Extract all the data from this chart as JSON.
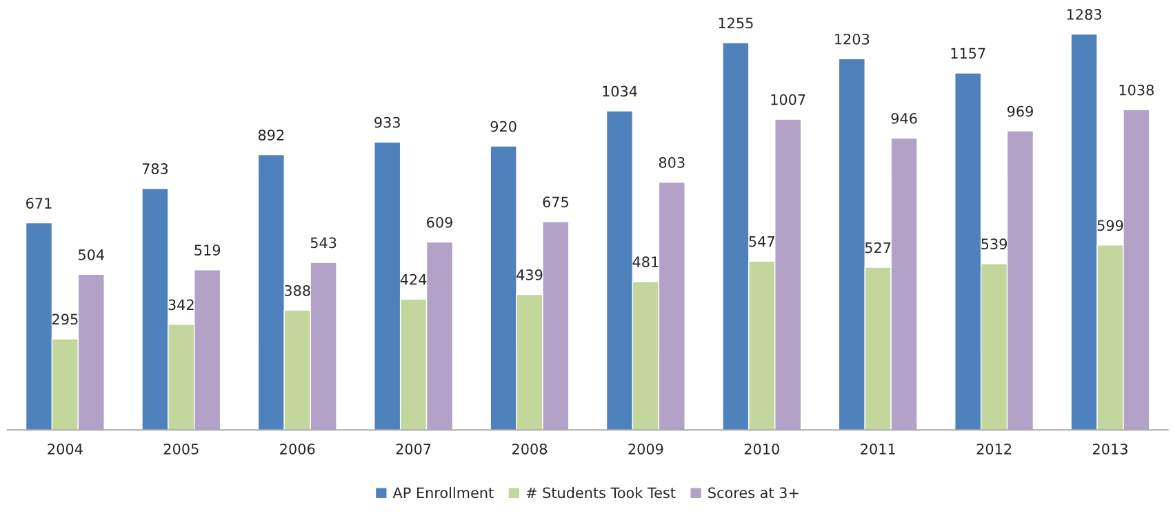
{
  "chart_data": {
    "type": "bar",
    "categories": [
      "2004",
      "2005",
      "2006",
      "2007",
      "2008",
      "2009",
      "2010",
      "2011",
      "2012",
      "2013"
    ],
    "series": [
      {
        "name": "AP Enrollment",
        "color": "#4f81bd",
        "values": [
          671,
          783,
          892,
          933,
          920,
          1034,
          1255,
          1203,
          1157,
          1283
        ]
      },
      {
        "name": "# Students Took Test",
        "color": "#c3d69b",
        "values": [
          295,
          342,
          388,
          424,
          439,
          481,
          547,
          527,
          539,
          599
        ]
      },
      {
        "name": "Scores at 3+",
        "color": "#b3a2c7",
        "values": [
          504,
          519,
          543,
          609,
          675,
          803,
          1007,
          946,
          969,
          1038
        ]
      }
    ],
    "data_labels": true,
    "legend": "bottom",
    "grid": false,
    "tick_labels": "x"
  }
}
